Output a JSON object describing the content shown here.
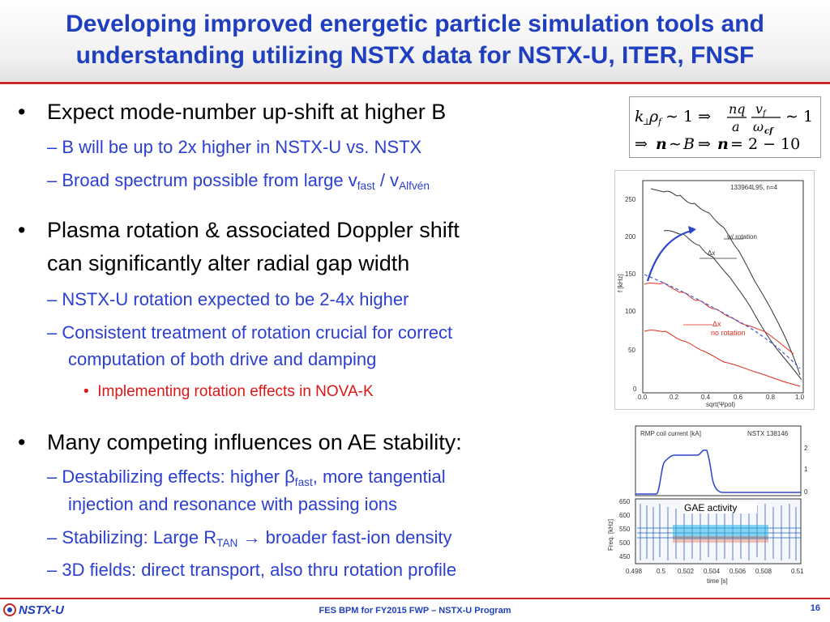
{
  "title": "Developing improved energetic particle simulation tools and understanding utilizing NSTX data for NSTX-U, ITER, FNSF",
  "bullet_char": "•",
  "sub_bullet_char": "–",
  "bullets": [
    {
      "text": "Expect mode-number up-shift at higher B",
      "subs": [
        {
          "text": "B will be up to 2x higher in NSTX-U vs. NSTX"
        },
        {
          "pre": "Broad spectrum possible from large v",
          "sub1": "fast",
          "mid": " / v",
          "sub2": "Alfvén"
        }
      ]
    },
    {
      "text_line1": "Plasma rotation & associated Doppler shift",
      "text_line2": "can significantly alter radial gap width",
      "subs": [
        {
          "text": "NSTX-U rotation expected to be 2-4x higher"
        },
        {
          "line1": "Consistent treatment of rotation crucial for correct",
          "line2": "computation of both drive and damping"
        }
      ],
      "subsub": "Implementing rotation effects in NOVA-K"
    },
    {
      "text": "Many competing influences on AE stability:",
      "subs": [
        {
          "pre": "Destabilizing effects: higher ",
          "beta": "β",
          "sub1": "fast",
          "post": ", more tangential",
          "line2": "injection and resonance with passing ions"
        },
        {
          "pre": "Stabilizing: Large R",
          "sub1": "TAN",
          "arrow": "→",
          "post": " broader fast-ion density"
        },
        {
          "text": "3D fields: direct transport, also thru rotation profile"
        }
      ]
    }
  ],
  "equation": {
    "line1": "k⊥ρf ∼ 1 ⇒ nq/a · vf/ωcf ∼ 1",
    "line2": "⇒ n ∼ B ⇒ n = 2 − 10"
  },
  "figure1": {
    "shot_label": "133964L95, n=4",
    "ylabel": "f [kHz]",
    "xlabel": "sqrt(Ψpol)",
    "yticks": [
      "250",
      "200",
      "150",
      "100",
      "50",
      "0"
    ],
    "xticks": [
      "0.0",
      "0.2",
      "0.4",
      "0.6",
      "0.8",
      "1.0"
    ],
    "annot_rot": "w/ rotation",
    "annot_norot": "no rotation",
    "annot_dx1": "Δx",
    "annot_dx2": "Δx"
  },
  "figure2": {
    "top_label": "RMP coil current [kA]",
    "shot_label": "NSTX 138146",
    "right_ticks": [
      "2",
      "1",
      "0"
    ],
    "gae_label": "GAE activity",
    "ylabel": "Freq. [kHz]",
    "yticks": [
      "650",
      "600",
      "550",
      "500",
      "450"
    ],
    "xticks": [
      "0.498",
      "0.5",
      "0.502",
      "0.504",
      "0.506",
      "0.508",
      "0.51"
    ],
    "xlabel": "time [s]"
  },
  "footer": {
    "logo": "NSTX-U",
    "center": "FES BPM for FY2015 FWP – NSTX-U Program",
    "page": "16"
  },
  "colors": {
    "title_blue": "#1f3fbf",
    "accent_red": "#c62828",
    "sub_blue": "#2b3fd0",
    "subsub_red": "#e01515"
  }
}
